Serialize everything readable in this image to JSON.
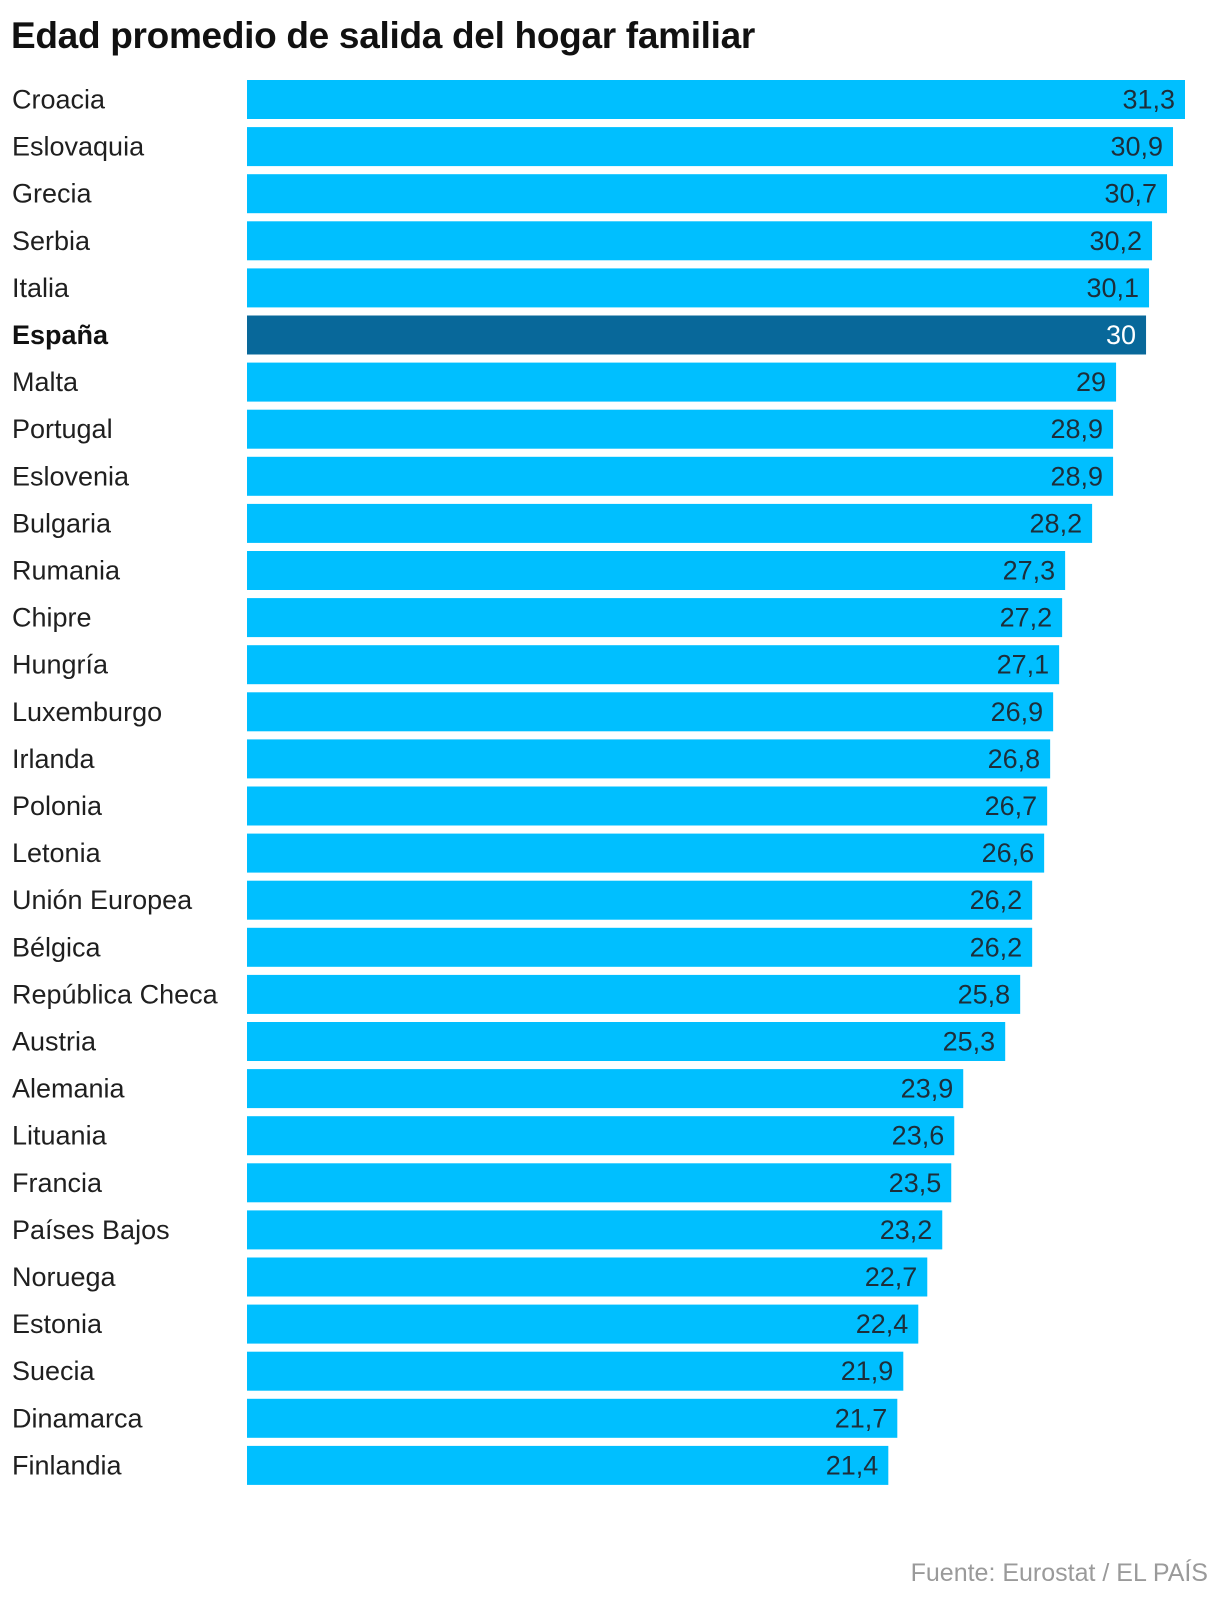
{
  "chart_data": {
    "type": "bar",
    "orientation": "horizontal",
    "title": "Edad promedio de salida del hogar familiar",
    "categories": [
      "Croacia",
      "Eslovaquia",
      "Grecia",
      "Serbia",
      "Italia",
      "España",
      "Malta",
      "Portugal",
      "Eslovenia",
      "Bulgaria",
      "Rumania",
      "Chipre",
      "Hungría",
      "Luxemburgo",
      "Irlanda",
      "Polonia",
      "Letonia",
      "Unión Europea",
      "Bélgica",
      "República Checa",
      "Austria",
      "Alemania",
      "Lituania",
      "Francia",
      "Países Bajos",
      "Noruega",
      "Estonia",
      "Suecia",
      "Dinamarca",
      "Finlandia"
    ],
    "values": [
      31.3,
      30.9,
      30.7,
      30.2,
      30.1,
      30,
      29,
      28.9,
      28.9,
      28.2,
      27.3,
      27.2,
      27.1,
      26.9,
      26.8,
      26.7,
      26.6,
      26.2,
      26.2,
      25.8,
      25.3,
      23.9,
      23.6,
      23.5,
      23.2,
      22.7,
      22.4,
      21.9,
      21.7,
      21.4
    ],
    "value_labels": [
      "31,3",
      "30,9",
      "30,7",
      "30,2",
      "30,1",
      "30",
      "29",
      "28,9",
      "28,9",
      "28,2",
      "27,3",
      "27,2",
      "27,1",
      "26,9",
      "26,8",
      "26,7",
      "26,6",
      "26,2",
      "26,2",
      "25,8",
      "25,3",
      "23,9",
      "23,6",
      "23,5",
      "23,2",
      "22,7",
      "22,4",
      "21,9",
      "21,7",
      "21,4"
    ],
    "highlight": "España",
    "xlim": [
      0,
      31.3
    ],
    "grid": false,
    "bar_color": "#00bfff",
    "highlight_color": "#08689a",
    "source": "Fuente: Eurostat / EL PAÍS"
  }
}
